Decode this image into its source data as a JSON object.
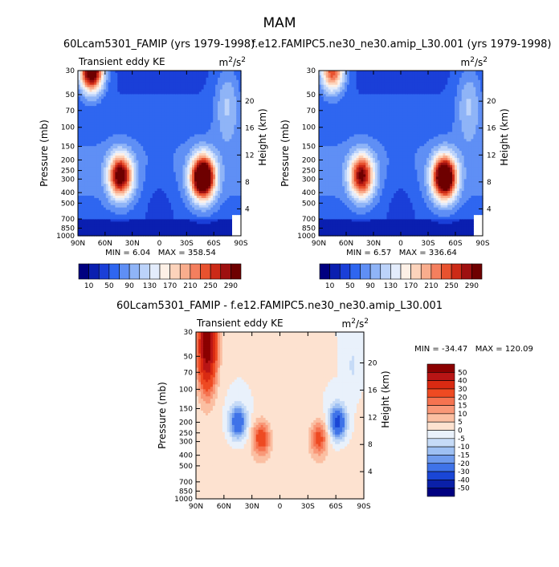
{
  "figure": {
    "season": "MAM"
  },
  "chart_data": [
    {
      "type": "heatmap",
      "title": "60Lcam5301_FAMIP (yrs 1979-1998)",
      "left_subtitle": "Transient eddy KE",
      "units": "m",
      "units_sup": "2",
      "units_tail": "/s",
      "units_sup2": "2",
      "ylabel": "Pressure (mb)",
      "ylabel_right": "Height (km)",
      "x_ticks": [
        "90N",
        "60N",
        "30N",
        "0",
        "30S",
        "60S",
        "90S"
      ],
      "y_ticks": [
        "30",
        "50",
        "70",
        "100",
        "150",
        "200",
        "250",
        "300",
        "400",
        "500",
        "700",
        "850",
        "1000"
      ],
      "height_ticks": [
        "4",
        "8",
        "12",
        "16",
        "20"
      ],
      "min_label": "MIN =",
      "min_value": "6.04",
      "max_label": "MAX =",
      "max_value": "358.54",
      "colorbar_labels": [
        "10",
        "50",
        "90",
        "130",
        "170",
        "210",
        "250",
        "290"
      ],
      "colors": [
        "#000080",
        "#0a1fb0",
        "#1a3fd8",
        "#2f66f0",
        "#5f8ff5",
        "#8fb4f7",
        "#bcd3fa",
        "#e3ecfc",
        "#fdf0e6",
        "#fcd3bb",
        "#f9ad8d",
        "#f47f5e",
        "#e8522f",
        "#cc2a17",
        "#9e1010",
        "#6e0000"
      ],
      "features": [
        {
          "lat": 75,
          "p": 30,
          "value": 300
        },
        {
          "lat": 43,
          "p": 280,
          "value": 250
        },
        {
          "lat": -48,
          "p": 290,
          "value": 340
        }
      ]
    },
    {
      "type": "heatmap",
      "title": "f.e12.FAMIPC5.ne30_ne30.amip_L30.001 (yrs 1979-1998)",
      "left_subtitle": "",
      "units": "m",
      "units_sup": "2",
      "units_tail": "/s",
      "units_sup2": "2",
      "ylabel": "Pressure (mb)",
      "ylabel_right": "Height (km)",
      "x_ticks": [
        "90N",
        "60N",
        "30N",
        "0",
        "30S",
        "60S",
        "90S"
      ],
      "y_ticks": [
        "30",
        "50",
        "70",
        "100",
        "150",
        "200",
        "250",
        "300",
        "400",
        "500",
        "700",
        "850",
        "1000"
      ],
      "height_ticks": [
        "4",
        "8",
        "12",
        "16",
        "20"
      ],
      "min_label": "MIN =",
      "min_value": "6.57",
      "max_label": "MAX =",
      "max_value": "336.64",
      "colorbar_labels": [
        "10",
        "50",
        "90",
        "130",
        "170",
        "210",
        "250",
        "290"
      ],
      "colors": [
        "#000080",
        "#0a1fb0",
        "#1a3fd8",
        "#2f66f0",
        "#5f8ff5",
        "#8fb4f7",
        "#bcd3fa",
        "#e3ecfc",
        "#fdf0e6",
        "#fcd3bb",
        "#f9ad8d",
        "#f47f5e",
        "#e8522f",
        "#cc2a17",
        "#9e1010",
        "#6e0000"
      ],
      "features": [
        {
          "lat": 75,
          "p": 30,
          "value": 200
        },
        {
          "lat": 43,
          "p": 280,
          "value": 230
        },
        {
          "lat": -48,
          "p": 290,
          "value": 320
        }
      ]
    },
    {
      "type": "heatmap",
      "title": "60Lcam5301_FAMIP - f.e12.FAMIPC5.ne30_ne30.amip_L30.001",
      "left_subtitle": "Transient eddy KE",
      "units": "m",
      "units_sup": "2",
      "units_tail": "/s",
      "units_sup2": "2",
      "ylabel": "Pressure (mb)",
      "ylabel_right": "Height (km)",
      "x_ticks": [
        "90N",
        "60N",
        "30N",
        "0",
        "30S",
        "60S",
        "90S"
      ],
      "y_ticks": [
        "30",
        "50",
        "70",
        "100",
        "150",
        "200",
        "250",
        "300",
        "400",
        "500",
        "700",
        "850",
        "1000"
      ],
      "height_ticks": [
        "4",
        "8",
        "12",
        "16",
        "20"
      ],
      "min_label": "MIN =",
      "min_value": "-34.47",
      "max_label": "MAX =",
      "max_value": "120.09",
      "colorbar_labels": [
        "50",
        "40",
        "30",
        "20",
        "15",
        "10",
        "5",
        "0",
        "-5",
        "-10",
        "-15",
        "-20",
        "-30",
        "-40",
        "-50"
      ],
      "colors": [
        "#8b0000",
        "#b81515",
        "#d92a12",
        "#ee4a22",
        "#f57350",
        "#f99878",
        "#fbbfa2",
        "#fde2d0",
        "#e9f1fb",
        "#c6dbf7",
        "#9ec0f3",
        "#6f9bed",
        "#3f73e8",
        "#1a46d6",
        "#0a20a8",
        "#000080"
      ],
      "features": [
        {
          "lat": 78,
          "p": 40,
          "value": 60
        },
        {
          "lat": 20,
          "p": 280,
          "value": 25
        },
        {
          "lat": -42,
          "p": 280,
          "value": 22
        },
        {
          "lat": 45,
          "p": 200,
          "value": -30
        },
        {
          "lat": -62,
          "p": 200,
          "value": -35
        }
      ]
    }
  ]
}
